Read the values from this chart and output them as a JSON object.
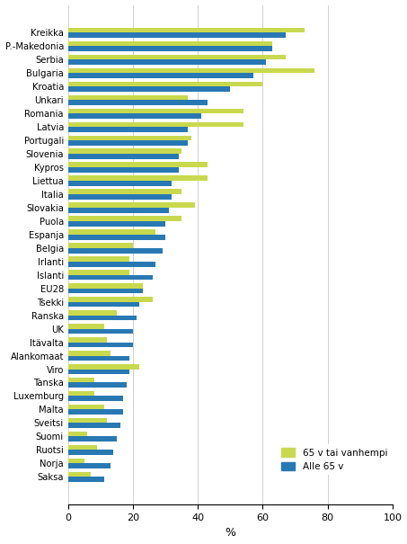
{
  "categories": [
    "Kreikka",
    "P.-Makedonia",
    "Serbia",
    "Bulgaria",
    "Kroatia",
    "Unkari",
    "Romania",
    "Latvia",
    "Portugali",
    "Slovenia",
    "Kypros",
    "Liettua",
    "Italia",
    "Slovakia",
    "Puola",
    "Espanja",
    "Belgia",
    "Irlanti",
    "Islanti",
    "EU28",
    "Tsekki",
    "Ranska",
    "UK",
    "Itävalta",
    "Alankomaat",
    "Viro",
    "Tanska",
    "Luxemburg",
    "Malta",
    "Sveitsi",
    "Suomi",
    "Ruotsi",
    "Norja",
    "Saksa"
  ],
  "values_65plus": [
    73,
    63,
    67,
    76,
    60,
    37,
    54,
    54,
    38,
    35,
    43,
    43,
    35,
    39,
    35,
    27,
    20,
    19,
    19,
    23,
    26,
    15,
    11,
    12,
    13,
    22,
    8,
    8,
    11,
    12,
    6,
    9,
    5,
    7
  ],
  "values_under65": [
    67,
    63,
    61,
    57,
    50,
    43,
    41,
    37,
    37,
    34,
    34,
    32,
    32,
    31,
    30,
    30,
    29,
    27,
    26,
    23,
    22,
    21,
    20,
    20,
    19,
    19,
    18,
    17,
    17,
    16,
    15,
    14,
    13,
    11
  ],
  "color_65plus": "#c8d94e",
  "color_under65": "#2878b4",
  "xlabel": "%",
  "xlim": [
    0,
    100
  ],
  "xticks": [
    0,
    20,
    40,
    60,
    80,
    100
  ],
  "legend_65plus": "65 v tai vanhempi",
  "legend_under65": "Alle 65 v",
  "background_color": "#ffffff",
  "grid_color": "#d0d0d0"
}
